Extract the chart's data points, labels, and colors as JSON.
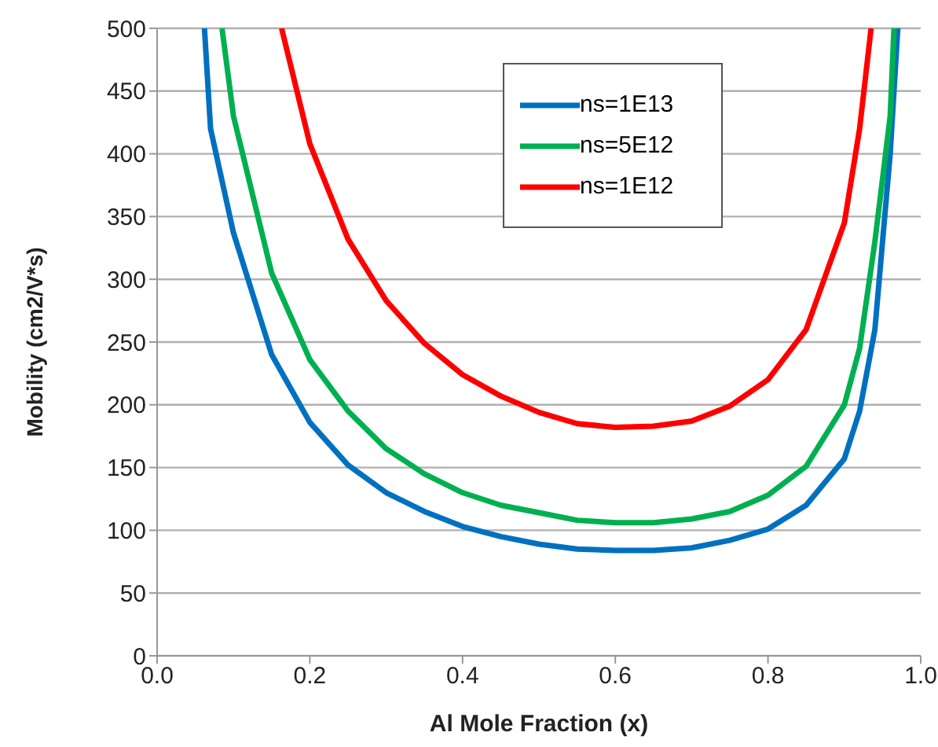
{
  "chart_data": {
    "type": "line",
    "xlabel": "Al Mole Fraction (x)",
    "ylabel": "Mobility (cm2/V*s)",
    "xlim": [
      0,
      1
    ],
    "xticks": [
      {
        "value": 0,
        "label": "0.0"
      },
      {
        "value": 0.2,
        "label": "0.2"
      },
      {
        "value": 0.4,
        "label": "0.4"
      },
      {
        "value": 0.6,
        "label": "0.6"
      },
      {
        "value": 0.8,
        "label": "0.8"
      },
      {
        "value": 1,
        "label": "1.0"
      }
    ],
    "ylim": [
      0,
      500
    ],
    "yticks": [
      0,
      50,
      100,
      150,
      200,
      250,
      300,
      350,
      400,
      450,
      500
    ],
    "grid": "y",
    "legend": "top right",
    "marker": "none",
    "line_style": "solid",
    "series": [
      {
        "name": "ns=1E13",
        "color": "#0070c0",
        "x": [
          0.062,
          0.07,
          0.1,
          0.15,
          0.2,
          0.25,
          0.3,
          0.35,
          0.4,
          0.45,
          0.5,
          0.55,
          0.6,
          0.65,
          0.7,
          0.75,
          0.8,
          0.85,
          0.9,
          0.92,
          0.94,
          0.95,
          0.96,
          0.97
        ],
        "values": [
          500,
          420,
          337,
          240,
          186,
          152,
          130,
          115,
          103,
          95,
          89,
          85,
          84,
          84,
          86,
          92,
          101,
          120,
          157,
          195,
          260,
          330,
          400,
          500
        ]
      },
      {
        "name": "ns=5E12",
        "color": "#00b050",
        "x": [
          0.085,
          0.1,
          0.15,
          0.2,
          0.25,
          0.3,
          0.35,
          0.4,
          0.45,
          0.5,
          0.55,
          0.6,
          0.65,
          0.7,
          0.75,
          0.8,
          0.85,
          0.9,
          0.92,
          0.94,
          0.96,
          0.965
        ],
        "values": [
          500,
          430,
          305,
          236,
          195,
          165,
          145,
          130,
          120,
          114,
          108,
          106,
          106,
          109,
          115,
          128,
          151,
          200,
          245,
          330,
          430,
          500
        ]
      },
      {
        "name": "ns=1E12",
        "color": "#ff0000",
        "x": [
          0.163,
          0.2,
          0.25,
          0.3,
          0.35,
          0.4,
          0.45,
          0.5,
          0.55,
          0.6,
          0.65,
          0.7,
          0.75,
          0.8,
          0.85,
          0.9,
          0.92,
          0.935
        ],
        "values": [
          500,
          408,
          332,
          283,
          249,
          224,
          207,
          194,
          185,
          182,
          183,
          187,
          199,
          220,
          260,
          345,
          420,
          500
        ]
      }
    ]
  }
}
